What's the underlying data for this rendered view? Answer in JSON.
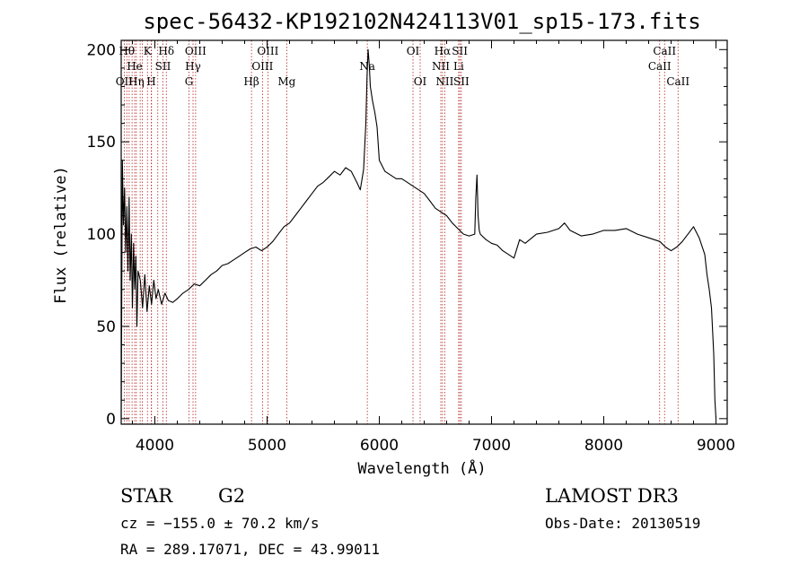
{
  "chart_data": {
    "type": "line",
    "title": "spec-56432-KP192102N424113V01_sp15-173.fits",
    "xlabel": "Wavelength (Å)",
    "ylabel": "Flux (relative)",
    "xlim": [
      3700,
      9100
    ],
    "ylim": [
      -3,
      205
    ],
    "xticks": [
      4000,
      5000,
      6000,
      7000,
      8000,
      9000
    ],
    "yticks": [
      0,
      50,
      100,
      150,
      200
    ],
    "x_tick_labels": [
      "4000",
      "5000",
      "6000",
      "7000",
      "8000",
      "9000"
    ],
    "y_tick_labels": [
      "0",
      "50",
      "100",
      "150",
      "200"
    ],
    "grid": false,
    "spectrum": {
      "x": [
        3700,
        3710,
        3720,
        3730,
        3740,
        3750,
        3760,
        3770,
        3780,
        3790,
        3800,
        3810,
        3820,
        3830,
        3840,
        3850,
        3870,
        3890,
        3910,
        3930,
        3950,
        3970,
        3990,
        4010,
        4030,
        4060,
        4090,
        4120,
        4160,
        4200,
        4250,
        4300,
        4350,
        4400,
        4450,
        4500,
        4550,
        4600,
        4650,
        4700,
        4750,
        4800,
        4850,
        4900,
        4950,
        5000,
        5050,
        5100,
        5150,
        5200,
        5250,
        5300,
        5350,
        5400,
        5450,
        5500,
        5550,
        5600,
        5650,
        5700,
        5750,
        5800,
        5830,
        5860,
        5880,
        5890,
        5900,
        5910,
        5920,
        5940,
        5960,
        5980,
        6000,
        6050,
        6100,
        6150,
        6200,
        6250,
        6300,
        6350,
        6400,
        6450,
        6500,
        6550,
        6600,
        6650,
        6700,
        6750,
        6800,
        6850,
        6860,
        6870,
        6880,
        6890,
        6900,
        6950,
        7000,
        7050,
        7100,
        7150,
        7200,
        7250,
        7300,
        7400,
        7500,
        7600,
        7650,
        7700,
        7800,
        7900,
        8000,
        8100,
        8200,
        8300,
        8400,
        8500,
        8550,
        8600,
        8650,
        8700,
        8750,
        8800,
        8850,
        8900,
        8920,
        8940,
        8960,
        8980,
        8990,
        9000
      ],
      "y": [
        0,
        140,
        105,
        125,
        90,
        115,
        80,
        120,
        75,
        100,
        60,
        95,
        70,
        88,
        50,
        80,
        75,
        60,
        78,
        58,
        72,
        62,
        75,
        65,
        70,
        62,
        68,
        64,
        63,
        65,
        68,
        70,
        73,
        72,
        75,
        78,
        80,
        83,
        84,
        86,
        88,
        90,
        92,
        93,
        91,
        93,
        96,
        100,
        104,
        106,
        110,
        114,
        118,
        122,
        126,
        128,
        131,
        134,
        132,
        136,
        134,
        128,
        124,
        135,
        160,
        185,
        200,
        192,
        180,
        172,
        166,
        158,
        140,
        134,
        132,
        130,
        130,
        128,
        126,
        124,
        122,
        118,
        114,
        112,
        110,
        106,
        103,
        100,
        99,
        100,
        120,
        132,
        110,
        102,
        100,
        97,
        95,
        94,
        91,
        89,
        87,
        97,
        95,
        100,
        101,
        103,
        106,
        102,
        99,
        100,
        102,
        102,
        103,
        100,
        98,
        96,
        93,
        91,
        93,
        96,
        100,
        104,
        98,
        89,
        78,
        70,
        60,
        35,
        10,
        0
      ]
    },
    "spectral_lines": [
      {
        "x": 3727,
        "label": "OII",
        "row": 2
      },
      {
        "x": 3750,
        "label": "Hθ",
        "row": 0
      },
      {
        "x": 3771,
        "label": "",
        "row": 0
      },
      {
        "x": 3797,
        "label": "",
        "row": 0
      },
      {
        "x": 3820,
        "label": "He",
        "row": 1
      },
      {
        "x": 3835,
        "label": "Hη",
        "row": 2
      },
      {
        "x": 3869,
        "label": "",
        "row": 0
      },
      {
        "x": 3889,
        "label": "",
        "row": 0
      },
      {
        "x": 3934,
        "label": "K",
        "row": 0
      },
      {
        "x": 3968,
        "label": "H",
        "row": 2
      },
      {
        "x": 3970,
        "label": "",
        "row": 0
      },
      {
        "x": 4026,
        "label": "",
        "row": 0
      },
      {
        "x": 4072,
        "label": "SII",
        "row": 1
      },
      {
        "x": 4102,
        "label": "Hδ",
        "row": 0
      },
      {
        "x": 4304,
        "label": "G",
        "row": 2
      },
      {
        "x": 4340,
        "label": "Hγ",
        "row": 1
      },
      {
        "x": 4363,
        "label": "OIII",
        "row": 0
      },
      {
        "x": 4861,
        "label": "Hβ",
        "row": 2
      },
      {
        "x": 4959,
        "label": "OIII",
        "row": 1
      },
      {
        "x": 5007,
        "label": "OIII",
        "row": 0
      },
      {
        "x": 5175,
        "label": "Mg",
        "row": 2
      },
      {
        "x": 5893,
        "label": "Na",
        "row": 1
      },
      {
        "x": 6300,
        "label": "OI",
        "row": 0
      },
      {
        "x": 6364,
        "label": "OI",
        "row": 2
      },
      {
        "x": 6548,
        "label": "NII",
        "row": 1
      },
      {
        "x": 6563,
        "label": "Hα",
        "row": 0
      },
      {
        "x": 6583,
        "label": "NII",
        "row": 2
      },
      {
        "x": 6707,
        "label": "Li",
        "row": 1
      },
      {
        "x": 6717,
        "label": "SII",
        "row": 0
      },
      {
        "x": 6731,
        "label": "SII",
        "row": 2
      },
      {
        "x": 8498,
        "label": "CaII",
        "row": 1
      },
      {
        "x": 8542,
        "label": "CaII",
        "row": 0
      },
      {
        "x": 8662,
        "label": "CaII",
        "row": 2
      }
    ],
    "info": {
      "class": "STAR",
      "subclass": "G2",
      "survey": "LAMOST DR3",
      "redshift": "cz = −155.0 ± 70.2 km/s",
      "obs_date": "Obs-Date: 20130519",
      "coords": "RA = 289.17071, DEC =  43.99011"
    }
  }
}
